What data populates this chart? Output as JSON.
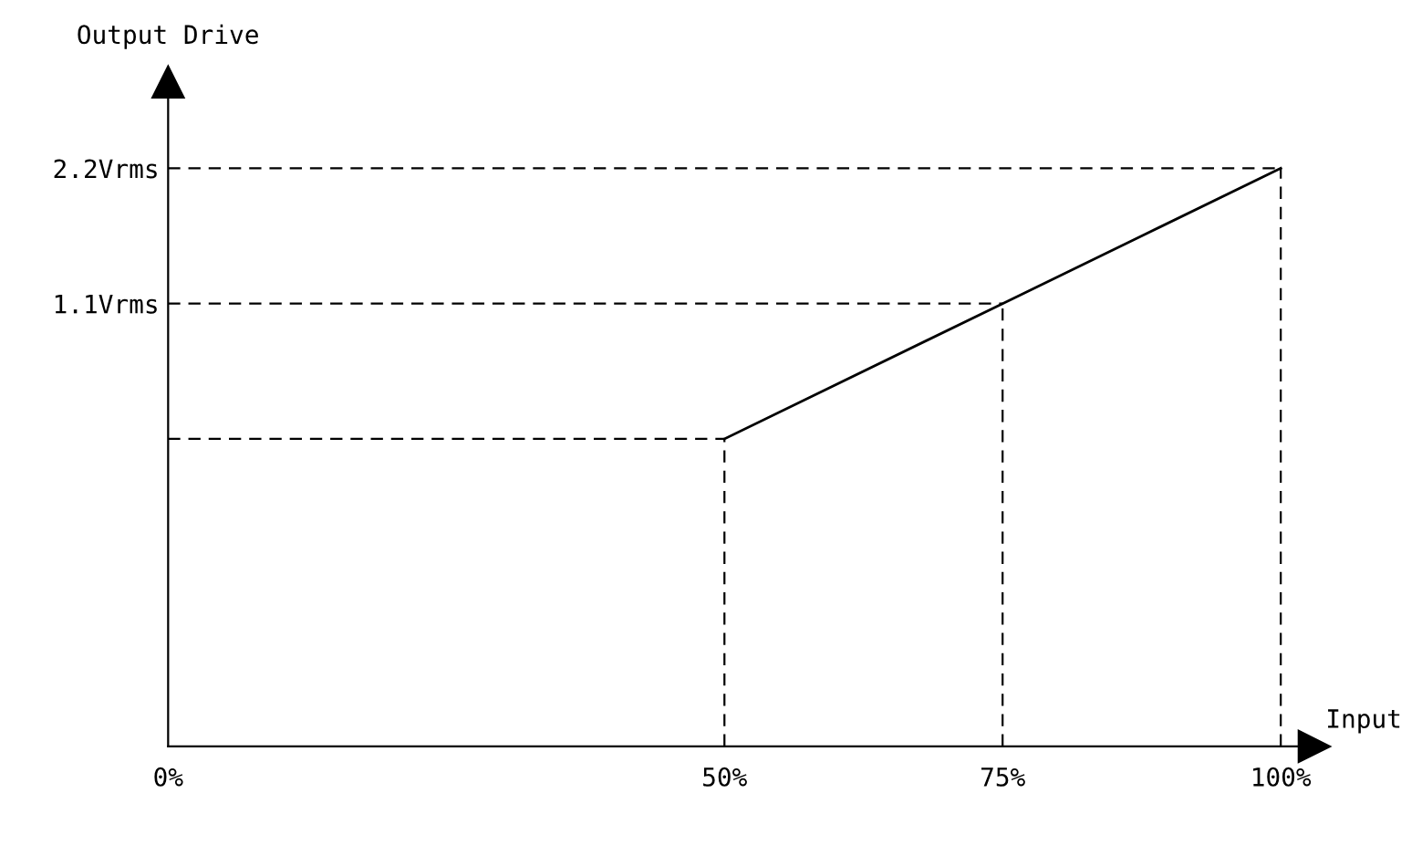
{
  "chart_data": {
    "type": "line",
    "xlabel": "Input",
    "ylabel": "Output Drive",
    "x": [
      50,
      75,
      100
    ],
    "series": [
      {
        "color": "#000000",
        "values": [
          0,
          1.1,
          2.2
        ]
      },
      {
        "color": "#000000",
        "x": [
          0,
          50
        ],
        "values": [
          0,
          0
        ],
        "line_style": "dashed"
      },
      {
        "color": "#000000",
        "x": [
          0,
          75
        ],
        "values": [
          1.1,
          1.1
        ],
        "line_style": "dashed"
      },
      {
        "color": "#000000",
        "x": [
          0,
          100
        ],
        "values": [
          2.2,
          2.2
        ],
        "line_style": "dashed"
      },
      {
        "color": "#000000",
        "x": [
          50,
          50
        ],
        "values": [
          -2.5,
          0
        ],
        "line_style": "dashed"
      },
      {
        "color": "#000000",
        "x": [
          75,
          75
        ],
        "values": [
          -2.5,
          1.1
        ],
        "line_style": "dashed"
      },
      {
        "color": "#000000",
        "x": [
          100,
          100
        ],
        "values": [
          -2.5,
          2.2
        ],
        "line_style": "dashed"
      }
    ],
    "xlim": [
      0,
      103
    ],
    "ylim": [
      -2.5,
      2.9
    ],
    "xticks": [
      {
        "value": 0,
        "label": "0%"
      },
      {
        "value": 50,
        "label": "50%"
      },
      {
        "value": 75,
        "label": "75%"
      },
      {
        "value": 100,
        "label": "100%"
      }
    ],
    "yticks": [
      {
        "value": 1.1,
        "label": "1.1Vrms"
      },
      {
        "value": 2.2,
        "label": "2.2Vrms"
      }
    ],
    "marker": "none",
    "line_style": "solid"
  }
}
